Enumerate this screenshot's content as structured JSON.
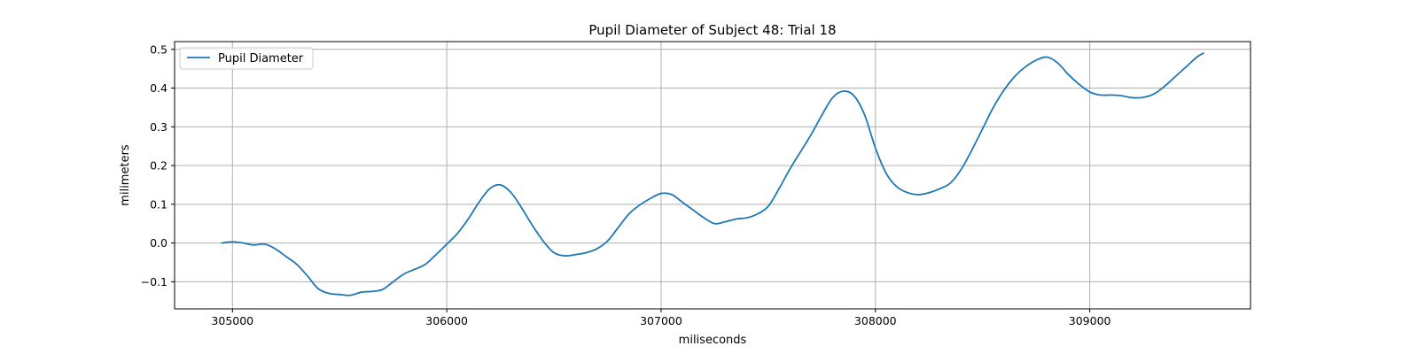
{
  "chart_data": {
    "type": "line",
    "title": "Pupil Diameter of Subject 48: Trial 18",
    "xlabel": "miliseconds",
    "ylabel": "milimeters",
    "xlim": [
      304730,
      309750
    ],
    "ylim": [
      -0.17,
      0.52
    ],
    "xticks": [
      305000,
      306000,
      307000,
      308000,
      309000
    ],
    "yticks": [
      -0.1,
      0.0,
      0.1,
      0.2,
      0.3,
      0.4,
      0.5
    ],
    "ytick_labels": [
      "−0.1",
      "0.0",
      "0.1",
      "0.2",
      "0.3",
      "0.4",
      "0.5"
    ],
    "grid": true,
    "legend_position": "upper-left",
    "colors": {
      "line": "#1f77b4",
      "grid": "#b0b0b0",
      "axes": "#000000",
      "legend_border": "#cccccc"
    },
    "series": [
      {
        "name": "Pupil Diameter",
        "x": [
          304950,
          305000,
          305050,
          305100,
          305150,
          305200,
          305250,
          305300,
          305350,
          305400,
          305450,
          305500,
          305550,
          305600,
          305650,
          305700,
          305750,
          305800,
          305850,
          305900,
          305950,
          306000,
          306050,
          306100,
          306150,
          306200,
          306250,
          306300,
          306350,
          306400,
          306450,
          306500,
          306550,
          306600,
          306650,
          306700,
          306750,
          306800,
          306850,
          306900,
          306950,
          307000,
          307050,
          307100,
          307150,
          307200,
          307250,
          307300,
          307350,
          307400,
          307450,
          307500,
          307550,
          307600,
          307650,
          307700,
          307750,
          307800,
          307850,
          307900,
          307950,
          308000,
          308050,
          308100,
          308150,
          308200,
          308250,
          308300,
          308350,
          308400,
          308450,
          308500,
          308550,
          308600,
          308650,
          308700,
          308750,
          308800,
          308850,
          308900,
          308950,
          309000,
          309050,
          309100,
          309150,
          309200,
          309250,
          309300,
          309350,
          309400,
          309450,
          309500,
          309530
        ],
        "y": [
          0.0,
          0.003,
          0.0,
          -0.005,
          -0.003,
          -0.015,
          -0.035,
          -0.055,
          -0.085,
          -0.118,
          -0.13,
          -0.133,
          -0.135,
          -0.127,
          -0.125,
          -0.12,
          -0.1,
          -0.08,
          -0.068,
          -0.055,
          -0.03,
          -0.003,
          0.025,
          0.062,
          0.105,
          0.14,
          0.15,
          0.13,
          0.09,
          0.045,
          0.005,
          -0.025,
          -0.033,
          -0.03,
          -0.025,
          -0.015,
          0.005,
          0.04,
          0.075,
          0.098,
          0.115,
          0.128,
          0.125,
          0.105,
          0.085,
          0.065,
          0.05,
          0.055,
          0.062,
          0.065,
          0.075,
          0.095,
          0.14,
          0.19,
          0.235,
          0.28,
          0.33,
          0.375,
          0.392,
          0.38,
          0.33,
          0.245,
          0.18,
          0.145,
          0.13,
          0.125,
          0.13,
          0.14,
          0.155,
          0.19,
          0.24,
          0.295,
          0.35,
          0.395,
          0.43,
          0.455,
          0.472,
          0.48,
          0.465,
          0.435,
          0.41,
          0.39,
          0.382,
          0.382,
          0.38,
          0.375,
          0.376,
          0.385,
          0.405,
          0.43,
          0.455,
          0.48,
          0.49
        ]
      }
    ]
  }
}
